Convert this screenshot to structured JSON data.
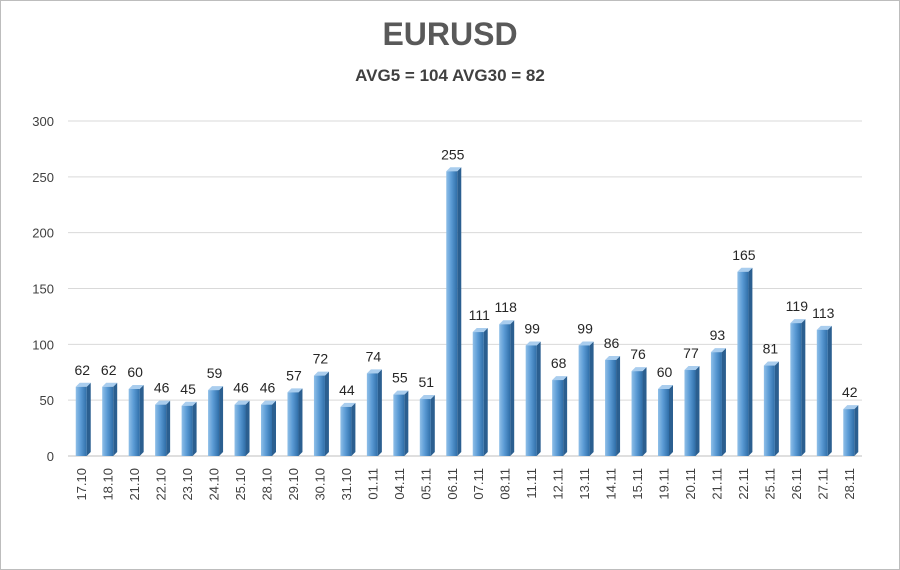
{
  "chart_data": {
    "type": "bar",
    "title": "EURUSD",
    "subtitle": "AVG5 = 104 AVG30 = 82",
    "xlabel": "",
    "ylabel": "",
    "ylim": [
      0,
      300
    ],
    "yticks": [
      "0",
      "50",
      "100",
      "150",
      "200",
      "250",
      "300"
    ],
    "grid": true,
    "legend": "none",
    "bar_color": "#5b9bd5",
    "categories": [
      "17.10",
      "18.10",
      "21.10",
      "22.10",
      "23.10",
      "24.10",
      "25.10",
      "28.10",
      "29.10",
      "30.10",
      "31.10",
      "01.11",
      "04.11",
      "05.11",
      "06.11",
      "07.11",
      "08.11",
      "11.11",
      "12.11",
      "13.11",
      "14.11",
      "15.11",
      "19.11",
      "20.11",
      "21.11",
      "22.11",
      "25.11",
      "26.11",
      "27.11",
      "28.11"
    ],
    "values": [
      62,
      62,
      60,
      46,
      45,
      59,
      46,
      46,
      57,
      72,
      44,
      74,
      55,
      51,
      255,
      111,
      118,
      99,
      68,
      99,
      86,
      76,
      60,
      77,
      93,
      165,
      81,
      119,
      113,
      42
    ]
  }
}
